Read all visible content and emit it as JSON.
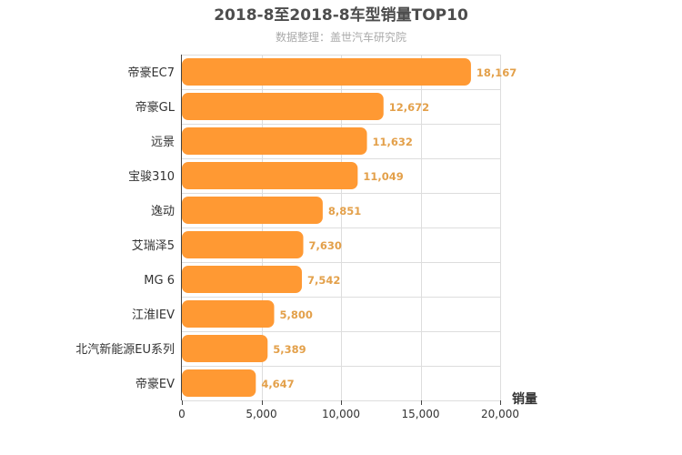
{
  "chart_data": {
    "type": "bar",
    "orientation": "horizontal",
    "title": "2018-8至2018-8车型销量TOP10",
    "subtitle": "数据整理：盖世汽车研究院",
    "categories": [
      "帝豪EC7",
      "帝豪GL",
      "远景",
      "宝骏310",
      "逸动",
      "艾瑞泽5",
      "MG 6",
      "江淮IEV",
      "北汽新能源EU系列",
      "帝豪EV"
    ],
    "values": [
      18167,
      12672,
      11632,
      11049,
      8851,
      7630,
      7542,
      5800,
      5389,
      4647
    ],
    "value_labels": [
      "18,167",
      "12,672",
      "11,632",
      "11,049",
      "8,851",
      "7,630",
      "7,542",
      "5,800",
      "5,389",
      "4,647"
    ],
    "xlabel": "销量",
    "ylabel": "",
    "xlim": [
      0,
      20000
    ],
    "xticks": [
      0,
      5000,
      10000,
      15000,
      20000
    ],
    "xtick_labels": [
      "0",
      "5,000",
      "10,000",
      "15,000",
      "20,000"
    ],
    "grid": true,
    "bar_color": "#ff9933",
    "value_label_color": "#e3a04a"
  }
}
